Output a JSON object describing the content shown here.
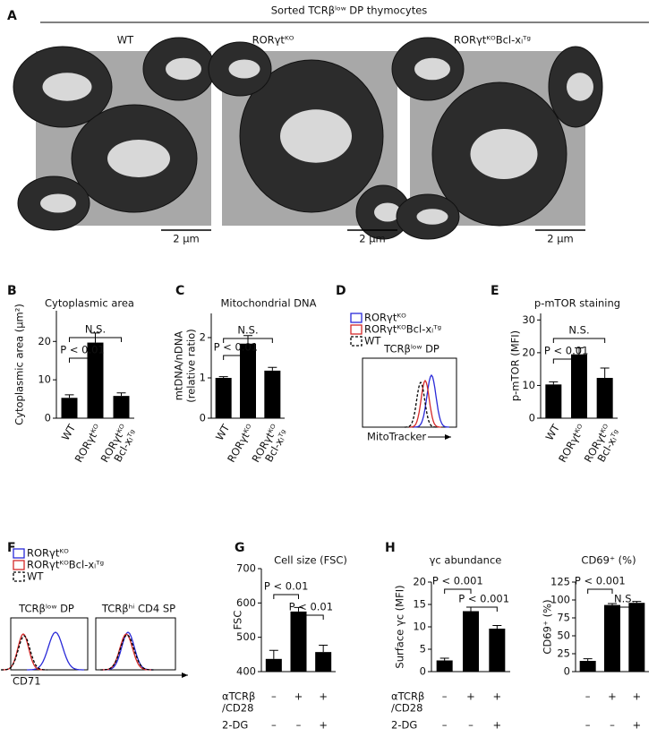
{
  "panel_labels": [
    "A",
    "B",
    "C",
    "D",
    "E",
    "F",
    "G",
    "H"
  ],
  "micrographs": {
    "title": "Sorted TCRβˡᵒʷ DP thymocytes",
    "labels": [
      "WT",
      "RORγtᴷᴼ",
      "RORγtᴷᴼBcl-xₗᵀᵍ"
    ],
    "scale_bar": "2 μm"
  },
  "chart_data": [
    {
      "type": "bar",
      "title": "Cytoplasmic area",
      "ylabel": "Cytoplasmic area (μm²)",
      "categories": [
        "WT",
        "RORγtᴷᴼ",
        [
          "RORγtᴷᴼ",
          "Bcl-xₗᵀᵍ"
        ]
      ],
      "values": [
        5.3,
        19.7,
        5.8
      ],
      "errors": [
        0.8,
        2.5,
        0.8
      ],
      "color": "#000000",
      "ylim": [
        0,
        28
      ],
      "yticks": [
        0,
        10,
        20
      ],
      "annotations": [
        "N.S.",
        "P < 0.01"
      ]
    },
    {
      "type": "bar",
      "title": "Mitochondrial DNA",
      "ylabel": [
        "mtDNA/nDNA",
        "(relative ratio)"
      ],
      "categories": [
        "WT",
        "RORγtᴷᴼ",
        [
          "RORγtᴷᴼ",
          "Bcl-xₗᵀᵍ"
        ]
      ],
      "values": [
        1.0,
        1.85,
        1.18
      ],
      "errors": [
        0.03,
        0.2,
        0.08
      ],
      "color": "#000000",
      "ylim": [
        0,
        2.6
      ],
      "yticks": [
        0,
        1,
        2
      ],
      "annotations": [
        "N.S.",
        "P < 0.01"
      ]
    },
    {
      "type": "bar",
      "title": "p-mTOR staining",
      "ylabel": "p-mTOR (MFI)",
      "categories": [
        "WT",
        "RORγtᴷᴼ",
        [
          "RORγtᴷᴼ",
          "Bcl-xₗᵀᵍ"
        ]
      ],
      "values": [
        10.3,
        19.5,
        12.3
      ],
      "errors": [
        0.8,
        2.0,
        3.0
      ],
      "color": "#000000",
      "ylim": [
        0,
        32
      ],
      "yticks": [
        0,
        10,
        20,
        30
      ],
      "annotations": [
        "N.S.",
        "P < 0.01"
      ]
    },
    {
      "type": "bar",
      "title": "Cell size (FSC)",
      "ylabel": "FSC",
      "values": [
        437,
        575,
        457
      ],
      "errors": [
        25,
        12,
        20
      ],
      "color": "#000000",
      "ylim": [
        400,
        700
      ],
      "yticks": [
        400,
        500,
        600,
        700
      ],
      "annotations": [
        "P < 0.01",
        "P < 0.01"
      ],
      "conditions": [
        {
          "label": [
            "αTCRβ",
            "/CD28"
          ],
          "marks": [
            "–",
            "+",
            "+"
          ]
        },
        {
          "label": [
            "2-DG"
          ],
          "marks": [
            "–",
            "–",
            "+"
          ]
        }
      ]
    },
    {
      "type": "bar",
      "title": "γc abundance",
      "ylabel": "Surface γc (MFI)",
      "values": [
        2.5,
        13.5,
        9.6
      ],
      "errors": [
        0.5,
        0.9,
        0.7
      ],
      "color": "#000000",
      "ylim": [
        0,
        20
      ],
      "yticks": [
        0,
        5,
        10,
        15,
        20
      ],
      "annotations": [
        "P < 0.001",
        "P < 0.001"
      ],
      "conditions": [
        {
          "label": [
            "αTCRβ",
            "/CD28"
          ],
          "marks": [
            "–",
            "+",
            "+"
          ]
        },
        {
          "label": [
            "2-DG"
          ],
          "marks": [
            "–",
            "–",
            "+"
          ]
        }
      ]
    },
    {
      "type": "bar",
      "title": "CD69⁺ (%)",
      "ylabel": "CD69⁺ (%)",
      "values": [
        15,
        93,
        96
      ],
      "errors": [
        3,
        2,
        2
      ],
      "color": "#000000",
      "ylim": [
        0,
        125
      ],
      "yticks": [
        0,
        25,
        50,
        75,
        100,
        125
      ],
      "annotations": [
        "P < 0.001",
        "N.S."
      ],
      "conditions": [
        {
          "marks": [
            "–",
            "+",
            "+"
          ]
        },
        {
          "marks": [
            "–",
            "–",
            "+"
          ]
        }
      ]
    }
  ],
  "histograms": {
    "legend": [
      {
        "name": "RORγtᴷᴼ",
        "color": "#2a2ad8"
      },
      {
        "name": "RORγtᴷᴼBcl-xₗᵀᵍ",
        "color": "#d42a2a"
      },
      {
        "name": "WT",
        "color": "#000000"
      }
    ],
    "D": {
      "titles": [
        "TCRβˡᵒʷ DP"
      ],
      "xlabel": "MitoTracker"
    },
    "F": {
      "titles": [
        "TCRβˡᵒʷ DP",
        "TCRβʰⁱ CD4 SP"
      ],
      "xlabel": "CD71"
    }
  }
}
